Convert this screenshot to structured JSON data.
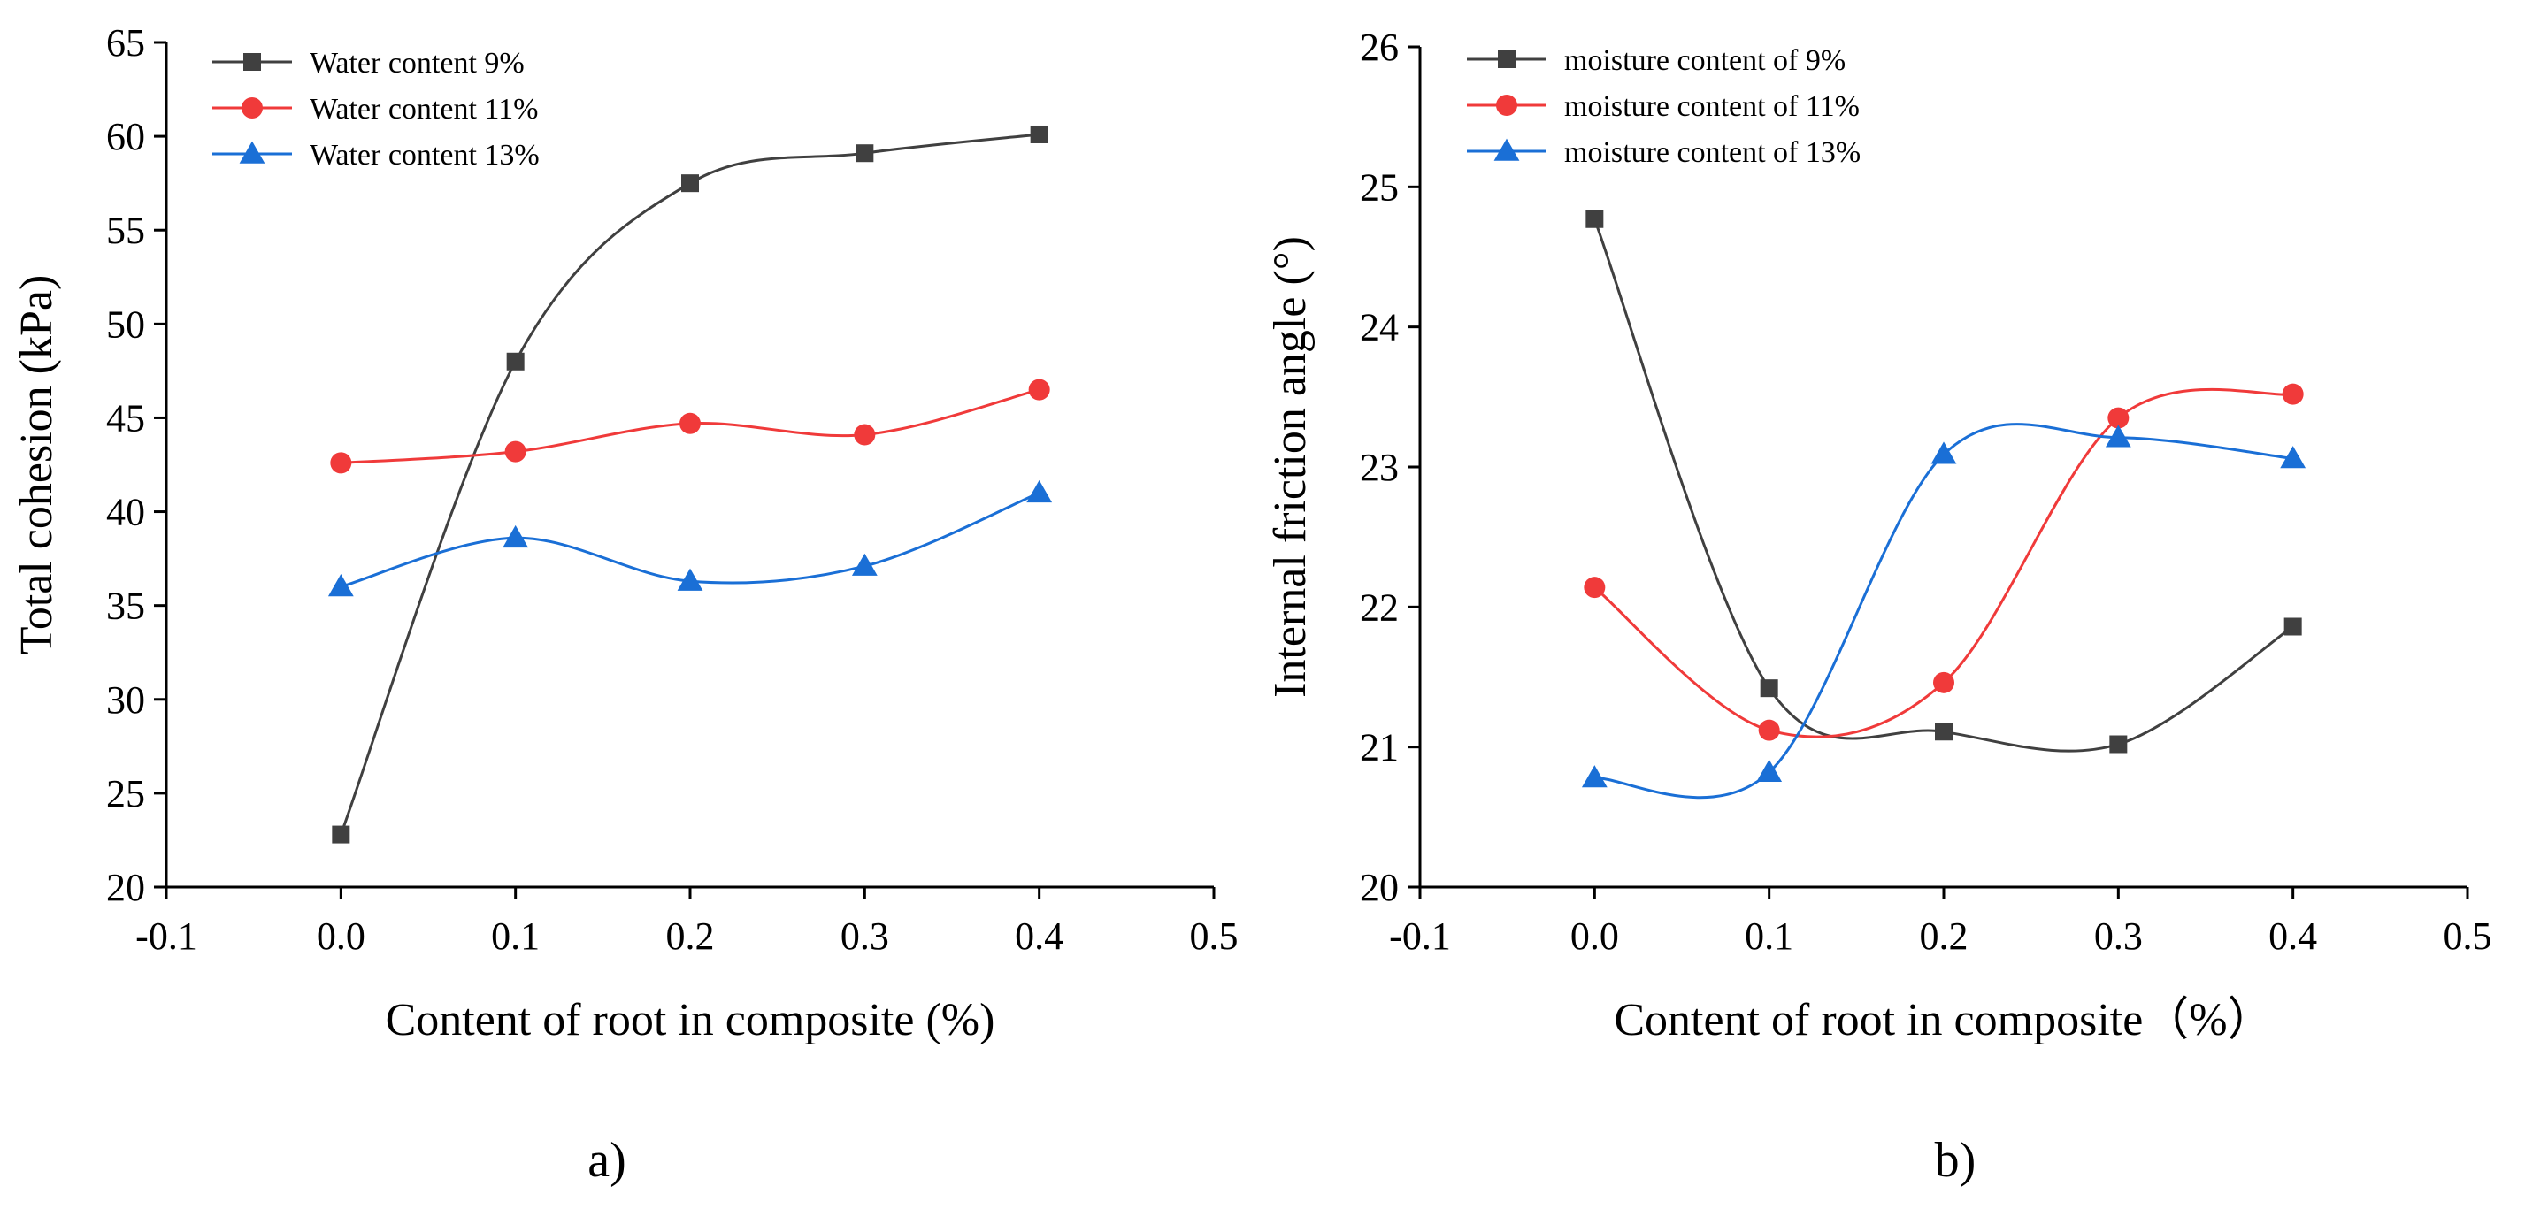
{
  "figure": {
    "panels": [
      "a)",
      "b)"
    ]
  },
  "chart_data": [
    {
      "type": "line",
      "panel_label": "a)",
      "title": "",
      "xlabel": "Content of root in composite (%)",
      "ylabel": "Total cohesion (kPa)",
      "xlim": [
        -0.1,
        0.5
      ],
      "ylim": [
        20,
        65
      ],
      "xticks": [
        -0.1,
        0.0,
        0.1,
        0.2,
        0.3,
        0.4,
        0.5
      ],
      "xtick_labels": [
        "-0.1",
        "0.0",
        "0.1",
        "0.2",
        "0.3",
        "0.4",
        "0.5"
      ],
      "yticks": [
        20,
        25,
        30,
        35,
        40,
        45,
        50,
        55,
        60,
        65
      ],
      "ytick_labels": [
        "20",
        "25",
        "30",
        "35",
        "40",
        "45",
        "50",
        "55",
        "60",
        "65"
      ],
      "grid": false,
      "legend_position": "top-left",
      "x": [
        0.0,
        0.1,
        0.2,
        0.3,
        0.4
      ],
      "series": [
        {
          "name": "Water content 9%",
          "color": "#404040",
          "marker": "square",
          "values": [
            22.8,
            48.0,
            57.5,
            59.1,
            60.1
          ]
        },
        {
          "name": "Water content 11%",
          "color": "#f03a3a",
          "marker": "circle",
          "values": [
            42.6,
            43.2,
            44.7,
            44.1,
            46.5
          ]
        },
        {
          "name": "Water content 13%",
          "color": "#1a6fd6",
          "marker": "triangle",
          "values": [
            36.0,
            38.6,
            36.3,
            37.1,
            41.0
          ]
        }
      ]
    },
    {
      "type": "line",
      "panel_label": "b)",
      "title": "",
      "xlabel": "Content of root in composite（%）",
      "ylabel": "Internal friction angle (°)",
      "xlim": [
        -0.1,
        0.5
      ],
      "ylim": [
        20,
        26
      ],
      "xticks": [
        -0.1,
        0.0,
        0.1,
        0.2,
        0.3,
        0.4,
        0.5
      ],
      "xtick_labels": [
        "-0.1",
        "0.0",
        "0.1",
        "0.2",
        "0.3",
        "0.4",
        "0.5"
      ],
      "yticks": [
        20,
        21,
        22,
        23,
        24,
        25,
        26
      ],
      "ytick_labels": [
        "20",
        "21",
        "22",
        "23",
        "24",
        "25",
        "26"
      ],
      "grid": false,
      "legend_position": "top-left",
      "x": [
        0.0,
        0.1,
        0.2,
        0.3,
        0.4
      ],
      "series": [
        {
          "name": "moisture content  of 9%",
          "color": "#404040",
          "marker": "square",
          "values": [
            24.77,
            21.42,
            21.11,
            21.02,
            21.86
          ]
        },
        {
          "name": "moisture content  of 11%",
          "color": "#f03a3a",
          "marker": "circle",
          "values": [
            22.14,
            21.12,
            21.46,
            23.35,
            23.52
          ]
        },
        {
          "name": "moisture content  of 13%",
          "color": "#1a6fd6",
          "marker": "triangle",
          "values": [
            20.78,
            20.82,
            23.09,
            23.21,
            23.06
          ]
        }
      ]
    }
  ]
}
